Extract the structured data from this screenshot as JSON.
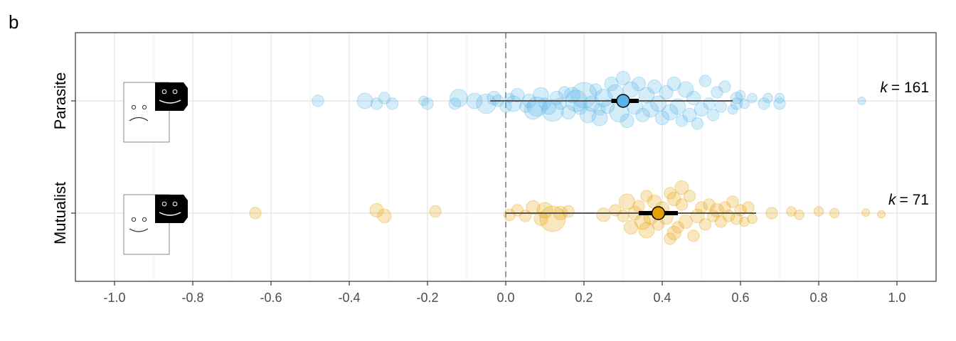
{
  "panel_label": "b",
  "chart_data": {
    "type": "scatter",
    "subtype": "forest-plot-with-effect-size-bubbles",
    "title": "",
    "xlabel": "",
    "ylabel": "",
    "xlim": [
      -1.1,
      1.1
    ],
    "x_ticks": [
      -1.0,
      -0.8,
      -0.6,
      -0.4,
      -0.2,
      0.0,
      0.2,
      0.4,
      0.6,
      0.8,
      1.0
    ],
    "x_tick_labels": [
      "-1.0",
      "-0.8",
      "-0.6",
      "-0.4",
      "-0.2",
      "0.0",
      "0.2",
      "0.4",
      "0.6",
      "0.8",
      "1.0"
    ],
    "reference_line_x": 0.0,
    "grid": true,
    "categories": [
      "Parasite",
      "Mutualist"
    ],
    "series": [
      {
        "name": "Parasite",
        "color": "#56B4E9",
        "k_label": "k",
        "k_value": "= 161",
        "estimate": 0.3,
        "ci_inner": [
          0.27,
          0.34
        ],
        "ci_outer": [
          -0.04,
          0.58
        ],
        "icon": "frown-face-with-black-smile-face",
        "points": [
          {
            "x": -0.48,
            "dy": 0.0,
            "w": 0.3
          },
          {
            "x": -0.36,
            "dy": 0.0,
            "w": 0.5
          },
          {
            "x": -0.33,
            "dy": 0.05,
            "w": 0.3
          },
          {
            "x": -0.31,
            "dy": -0.05,
            "w": 0.3
          },
          {
            "x": -0.29,
            "dy": 0.05,
            "w": 0.3
          },
          {
            "x": -0.21,
            "dy": 0.0,
            "w": 0.2
          },
          {
            "x": -0.2,
            "dy": 0.05,
            "w": 0.3
          },
          {
            "x": -0.13,
            "dy": 0.05,
            "w": 0.3
          },
          {
            "x": -0.12,
            "dy": -0.05,
            "w": 0.6
          },
          {
            "x": -0.08,
            "dy": 0.0,
            "w": 0.5
          },
          {
            "x": -0.05,
            "dy": 0.05,
            "w": 0.7
          },
          {
            "x": -0.03,
            "dy": -0.05,
            "w": 0.4
          },
          {
            "x": -0.02,
            "dy": 0.0,
            "w": 0.3
          },
          {
            "x": 0.0,
            "dy": 0.1,
            "w": 0.3
          },
          {
            "x": 0.01,
            "dy": -0.05,
            "w": 0.2
          },
          {
            "x": 0.02,
            "dy": 0.05,
            "w": 0.5
          },
          {
            "x": 0.03,
            "dy": -0.1,
            "w": 0.4
          },
          {
            "x": 0.05,
            "dy": 0.1,
            "w": 0.3
          },
          {
            "x": 0.06,
            "dy": 0.0,
            "w": 0.4
          },
          {
            "x": 0.07,
            "dy": 0.17,
            "w": 0.6
          },
          {
            "x": 0.08,
            "dy": 0.1,
            "w": 0.7
          },
          {
            "x": 0.09,
            "dy": -0.1,
            "w": 0.5
          },
          {
            "x": 0.1,
            "dy": 0.05,
            "w": 0.3
          },
          {
            "x": 0.11,
            "dy": 0.12,
            "w": 0.4
          },
          {
            "x": 0.12,
            "dy": 0.17,
            "w": 0.8
          },
          {
            "x": 0.13,
            "dy": -0.05,
            "w": 0.4
          },
          {
            "x": 0.14,
            "dy": 0.05,
            "w": 0.3
          },
          {
            "x": 0.15,
            "dy": -0.15,
            "w": 0.3
          },
          {
            "x": 0.16,
            "dy": 0.2,
            "w": 0.4
          },
          {
            "x": 0.17,
            "dy": -0.1,
            "w": 0.5
          },
          {
            "x": 0.18,
            "dy": 0.0,
            "w": 0.8
          },
          {
            "x": 0.19,
            "dy": 0.12,
            "w": 0.4
          },
          {
            "x": 0.2,
            "dy": -0.1,
            "w": 1.0
          },
          {
            "x": 0.21,
            "dy": 0.25,
            "w": 0.5
          },
          {
            "x": 0.22,
            "dy": 0.05,
            "w": 0.5
          },
          {
            "x": 0.23,
            "dy": -0.2,
            "w": 0.3
          },
          {
            "x": 0.24,
            "dy": 0.15,
            "w": 0.3
          },
          {
            "x": 0.24,
            "dy": 0.3,
            "w": 0.5
          },
          {
            "x": 0.25,
            "dy": -0.05,
            "w": 0.6
          },
          {
            "x": 0.26,
            "dy": 0.1,
            "w": 0.4
          },
          {
            "x": 0.27,
            "dy": -0.3,
            "w": 0.4
          },
          {
            "x": 0.28,
            "dy": -0.15,
            "w": 0.5
          },
          {
            "x": 0.29,
            "dy": 0.2,
            "w": 0.7
          },
          {
            "x": 0.3,
            "dy": -0.4,
            "w": 0.4
          },
          {
            "x": 0.31,
            "dy": 0.35,
            "w": 0.4
          },
          {
            "x": 0.32,
            "dy": -0.2,
            "w": 0.5
          },
          {
            "x": 0.33,
            "dy": 0.1,
            "w": 0.5
          },
          {
            "x": 0.34,
            "dy": -0.3,
            "w": 0.4
          },
          {
            "x": 0.35,
            "dy": 0.25,
            "w": 0.4
          },
          {
            "x": 0.36,
            "dy": -0.1,
            "w": 0.5
          },
          {
            "x": 0.37,
            "dy": 0.15,
            "w": 0.5
          },
          {
            "x": 0.38,
            "dy": -0.25,
            "w": 0.4
          },
          {
            "x": 0.39,
            "dy": 0.05,
            "w": 0.5
          },
          {
            "x": 0.4,
            "dy": 0.3,
            "w": 0.4
          },
          {
            "x": 0.41,
            "dy": -0.15,
            "w": 0.4
          },
          {
            "x": 0.42,
            "dy": 0.2,
            "w": 0.5
          },
          {
            "x": 0.43,
            "dy": -0.3,
            "w": 0.4
          },
          {
            "x": 0.44,
            "dy": 0.1,
            "w": 0.5
          },
          {
            "x": 0.45,
            "dy": 0.35,
            "w": 0.3
          },
          {
            "x": 0.46,
            "dy": -0.2,
            "w": 0.5
          },
          {
            "x": 0.47,
            "dy": 0.25,
            "w": 0.4
          },
          {
            "x": 0.48,
            "dy": -0.05,
            "w": 0.4
          },
          {
            "x": 0.49,
            "dy": 0.4,
            "w": 0.3
          },
          {
            "x": 0.5,
            "dy": 0.15,
            "w": 0.4
          },
          {
            "x": 0.51,
            "dy": -0.35,
            "w": 0.3
          },
          {
            "x": 0.52,
            "dy": 0.05,
            "w": 0.3
          },
          {
            "x": 0.53,
            "dy": 0.25,
            "w": 0.3
          },
          {
            "x": 0.54,
            "dy": -0.15,
            "w": 0.3
          },
          {
            "x": 0.55,
            "dy": 0.1,
            "w": 0.3
          },
          {
            "x": 0.56,
            "dy": -0.25,
            "w": 0.3
          },
          {
            "x": 0.58,
            "dy": 0.15,
            "w": 0.2
          },
          {
            "x": 0.59,
            "dy": 0.05,
            "w": 0.3
          },
          {
            "x": 0.59,
            "dy": -0.05,
            "w": 0.3
          },
          {
            "x": 0.6,
            "dy": -0.1,
            "w": 0.2
          },
          {
            "x": 0.61,
            "dy": 0.05,
            "w": 0.2
          },
          {
            "x": 0.63,
            "dy": -0.05,
            "w": 0.2
          },
          {
            "x": 0.66,
            "dy": 0.05,
            "w": 0.3
          },
          {
            "x": 0.67,
            "dy": -0.05,
            "w": 0.2
          },
          {
            "x": 0.7,
            "dy": 0.05,
            "w": 0.3
          },
          {
            "x": 0.7,
            "dy": -0.05,
            "w": 0.2
          },
          {
            "x": 0.91,
            "dy": 0.0,
            "w": 0.1
          }
        ]
      },
      {
        "name": "Mutualist",
        "color": "#E69F00",
        "k_label": "k",
        "k_value": "= 71",
        "estimate": 0.39,
        "ci_inner": [
          0.34,
          0.44
        ],
        "ci_outer": [
          0.0,
          0.64
        ],
        "icon": "smile-face-with-black-smile-face",
        "points": [
          {
            "x": -0.64,
            "dy": 0.0,
            "w": 0.3
          },
          {
            "x": -0.33,
            "dy": -0.05,
            "w": 0.4
          },
          {
            "x": -0.31,
            "dy": 0.05,
            "w": 0.4
          },
          {
            "x": -0.18,
            "dy": -0.03,
            "w": 0.3
          },
          {
            "x": 0.01,
            "dy": 0.03,
            "w": 0.3
          },
          {
            "x": 0.03,
            "dy": -0.05,
            "w": 0.3
          },
          {
            "x": 0.05,
            "dy": 0.05,
            "w": 0.3
          },
          {
            "x": 0.07,
            "dy": -0.1,
            "w": 0.4
          },
          {
            "x": 0.09,
            "dy": 0.1,
            "w": 0.4
          },
          {
            "x": 0.1,
            "dy": -0.05,
            "w": 0.5
          },
          {
            "x": 0.12,
            "dy": 0.1,
            "w": 1.0
          },
          {
            "x": 0.14,
            "dy": 0.0,
            "w": 0.4
          },
          {
            "x": 0.16,
            "dy": -0.03,
            "w": 0.3
          },
          {
            "x": 0.25,
            "dy": 0.03,
            "w": 0.4
          },
          {
            "x": 0.28,
            "dy": -0.05,
            "w": 0.3
          },
          {
            "x": 0.3,
            "dy": 0.05,
            "w": 0.3
          },
          {
            "x": 0.31,
            "dy": -0.2,
            "w": 0.5
          },
          {
            "x": 0.32,
            "dy": 0.25,
            "w": 0.4
          },
          {
            "x": 0.33,
            "dy": 0.0,
            "w": 0.4
          },
          {
            "x": 0.34,
            "dy": -0.12,
            "w": 0.3
          },
          {
            "x": 0.35,
            "dy": 0.15,
            "w": 0.5
          },
          {
            "x": 0.36,
            "dy": -0.3,
            "w": 0.3
          },
          {
            "x": 0.36,
            "dy": 0.3,
            "w": 0.5
          },
          {
            "x": 0.37,
            "dy": 0.08,
            "w": 0.4
          },
          {
            "x": 0.38,
            "dy": -0.2,
            "w": 0.4
          },
          {
            "x": 0.39,
            "dy": 0.2,
            "w": 0.3
          },
          {
            "x": 0.4,
            "dy": -0.08,
            "w": 0.4
          },
          {
            "x": 0.41,
            "dy": 0.08,
            "w": 0.4
          },
          {
            "x": 0.42,
            "dy": -0.35,
            "w": 0.3
          },
          {
            "x": 0.42,
            "dy": 0.45,
            "w": 0.3
          },
          {
            "x": 0.43,
            "dy": 0.35,
            "w": 0.4
          },
          {
            "x": 0.43,
            "dy": -0.25,
            "w": 0.4
          },
          {
            "x": 0.44,
            "dy": 0.25,
            "w": 0.3
          },
          {
            "x": 0.45,
            "dy": -0.45,
            "w": 0.4
          },
          {
            "x": 0.45,
            "dy": -0.15,
            "w": 0.3
          },
          {
            "x": 0.46,
            "dy": 0.15,
            "w": 0.4
          },
          {
            "x": 0.47,
            "dy": -0.3,
            "w": 0.3
          },
          {
            "x": 0.48,
            "dy": 0.4,
            "w": 0.3
          },
          {
            "x": 0.49,
            "dy": 0.05,
            "w": 0.4
          },
          {
            "x": 0.5,
            "dy": -0.1,
            "w": 0.3
          },
          {
            "x": 0.51,
            "dy": 0.2,
            "w": 0.3
          },
          {
            "x": 0.52,
            "dy": -0.15,
            "w": 0.3
          },
          {
            "x": 0.53,
            "dy": 0.05,
            "w": 0.3
          },
          {
            "x": 0.54,
            "dy": -0.05,
            "w": 0.4
          },
          {
            "x": 0.55,
            "dy": 0.15,
            "w": 0.3
          },
          {
            "x": 0.56,
            "dy": -0.1,
            "w": 0.3
          },
          {
            "x": 0.57,
            "dy": 0.05,
            "w": 0.3
          },
          {
            "x": 0.58,
            "dy": -0.2,
            "w": 0.3
          },
          {
            "x": 0.59,
            "dy": 0.1,
            "w": 0.3
          },
          {
            "x": 0.6,
            "dy": -0.05,
            "w": 0.3
          },
          {
            "x": 0.61,
            "dy": 0.15,
            "w": 0.2
          },
          {
            "x": 0.62,
            "dy": -0.1,
            "w": 0.3
          },
          {
            "x": 0.63,
            "dy": 0.1,
            "w": 0.2
          },
          {
            "x": 0.68,
            "dy": 0.0,
            "w": 0.3
          },
          {
            "x": 0.73,
            "dy": -0.03,
            "w": 0.2
          },
          {
            "x": 0.75,
            "dy": 0.03,
            "w": 0.2
          },
          {
            "x": 0.8,
            "dy": -0.03,
            "w": 0.2
          },
          {
            "x": 0.84,
            "dy": 0.0,
            "w": 0.2
          },
          {
            "x": 0.92,
            "dy": -0.01,
            "w": 0.1
          },
          {
            "x": 0.96,
            "dy": 0.02,
            "w": 0.1
          }
        ]
      }
    ]
  }
}
